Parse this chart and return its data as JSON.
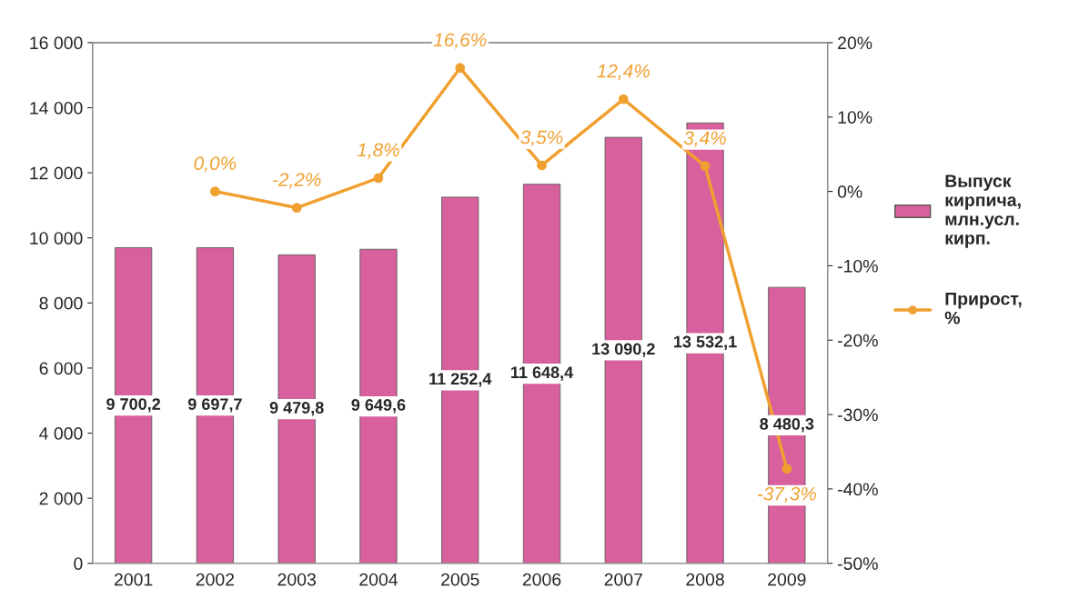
{
  "chart_data": {
    "type": "bar",
    "categories": [
      "2001",
      "2002",
      "2003",
      "2004",
      "2005",
      "2006",
      "2007",
      "2008",
      "2009"
    ],
    "series": [
      {
        "name": "Выпуск кирпича, млн.усл. кирп.",
        "color": "#d8609c",
        "values": [
          9700.2,
          9697.7,
          9479.8,
          9649.6,
          11252.4,
          11648.4,
          13090.2,
          13532.1,
          8480.3
        ],
        "value_labels": [
          "9 700,2",
          "9 697,7",
          "9 479,8",
          "9 649,6",
          "11 252,4",
          "11 648,4",
          "13 090,2",
          "13 532,1",
          "8 480,3"
        ]
      },
      {
        "name": "Прирост, %",
        "type": "line",
        "axis": "y2",
        "color": "#f0a030",
        "marker": "circle",
        "values": [
          null,
          0.0,
          -2.2,
          1.8,
          16.6,
          3.5,
          12.4,
          3.4,
          -37.3
        ],
        "value_labels": [
          null,
          "0,0%",
          "-2,2%",
          "1,8%",
          "16,6%",
          "3,5%",
          "12,4%",
          "3,4%",
          "-37,3%"
        ]
      }
    ],
    "ylim": [
      0,
      16000
    ],
    "yticks": [
      0,
      {
        "value": 2000,
        "label": "2 000"
      },
      {
        "value": 4000,
        "label": "4 000"
      },
      {
        "value": 6000,
        "label": "6 000"
      },
      {
        "value": 8000,
        "label": "8 000"
      },
      {
        "value": 10000,
        "label": "10 000"
      },
      {
        "value": 12000,
        "label": "12 000"
      },
      {
        "value": 14000,
        "label": "14 000"
      },
      {
        "value": 16000,
        "label": "16 000"
      }
    ],
    "y2lim": [
      -50,
      20
    ],
    "y2ticks": [
      {
        "value": -50,
        "label": "-50%"
      },
      {
        "value": -40,
        "label": "-40%"
      },
      {
        "value": -30,
        "label": "-30%"
      },
      {
        "value": -20,
        "label": "-20%"
      },
      {
        "value": -10,
        "label": "-10%"
      },
      {
        "value": 0,
        "label": "0%"
      },
      {
        "value": 10,
        "label": "10%"
      },
      {
        "value": 20,
        "label": "20%"
      }
    ],
    "legend": "right",
    "grid": false
  }
}
